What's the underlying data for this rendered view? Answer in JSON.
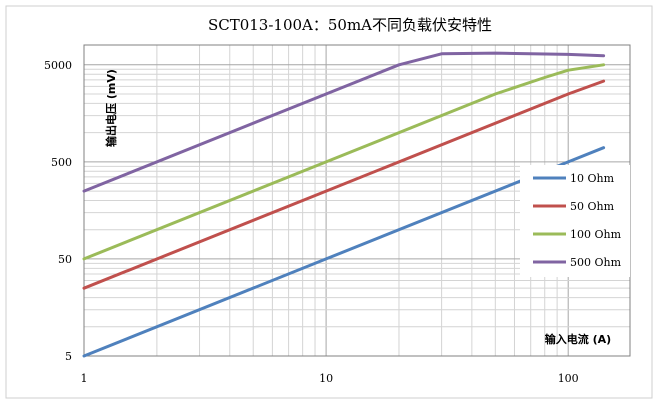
{
  "chart_data": {
    "type": "line",
    "title": "SCT013-100A：50mA不同负载伏安特性",
    "xlabel": "输入电流 (A)",
    "ylabel": "输出电压 (mV)",
    "x_scale": "log",
    "y_scale": "log",
    "xlim": [
      1,
      180
    ],
    "ylim": [
      5,
      8000
    ],
    "x_ticks": [
      "1",
      "10",
      "100"
    ],
    "y_ticks": [
      "5",
      "50",
      "500",
      "5000"
    ],
    "grid": true,
    "legend_position": "right",
    "series": [
      {
        "name": "10 Ohm",
        "color": "#4f81bd",
        "points": [
          [
            1,
            5
          ],
          [
            10,
            50
          ],
          [
            100,
            500
          ],
          [
            140,
            700
          ]
        ]
      },
      {
        "name": "50 Ohm",
        "color": "#c0504d",
        "points": [
          [
            1,
            25
          ],
          [
            10,
            250
          ],
          [
            100,
            2500
          ],
          [
            140,
            3400
          ]
        ]
      },
      {
        "name": "100 Ohm",
        "color": "#9bbb59",
        "points": [
          [
            1,
            50
          ],
          [
            10,
            500
          ],
          [
            50,
            2500
          ],
          [
            80,
            3700
          ],
          [
            100,
            4400
          ],
          [
            140,
            5000
          ]
        ]
      },
      {
        "name": "500 Ohm",
        "color": "#8064a2",
        "points": [
          [
            1,
            250
          ],
          [
            10,
            2500
          ],
          [
            20,
            5000
          ],
          [
            30,
            6500
          ],
          [
            50,
            6600
          ],
          [
            100,
            6400
          ],
          [
            140,
            6200
          ]
        ]
      }
    ]
  }
}
